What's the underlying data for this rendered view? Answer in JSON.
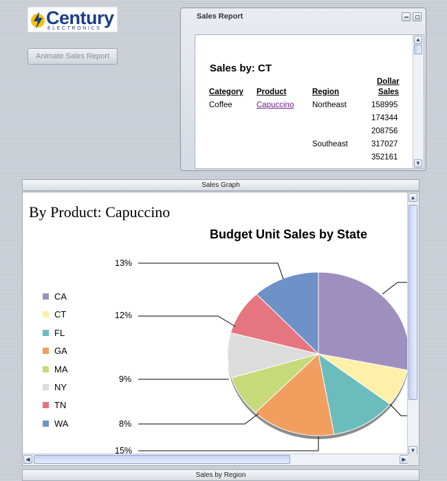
{
  "logo": {
    "brand": "Century",
    "sub": "ELECTRONICS"
  },
  "animate_button": "Animate Sales Report",
  "report_window": {
    "title": "Sales Report",
    "heading": "Sales by: CT",
    "headers": {
      "category": "Category",
      "product": "Product",
      "region": "Region",
      "dollar": "Dollar",
      "sales": "Sales"
    },
    "category": "Coffee",
    "product": "Capuccino",
    "regions": [
      "Northeast",
      "Southeast"
    ],
    "values": [
      "158995",
      "174344",
      "208756",
      "317027",
      "352161"
    ]
  },
  "panels": {
    "graph_title": "Sales Graph",
    "region_title": "Sales by Region"
  },
  "graph": {
    "by_product": "By Product: Capuccino"
  },
  "chart_data": {
    "type": "pie",
    "title": "Budget Unit Sales by State",
    "legend_position": "left",
    "categories": [
      "CA",
      "CT",
      "FL",
      "GA",
      "MA",
      "NY",
      "TN",
      "WA"
    ],
    "colors": [
      "#9f8fbf",
      "#fef0a8",
      "#6bbcbc",
      "#f29e5f",
      "#c6da7a",
      "#dcdcdc",
      "#e5757f",
      "#6e91c8"
    ],
    "values": [
      null,
      null,
      null,
      15,
      8,
      9,
      12,
      13
    ],
    "visible_labels": [
      "13%",
      "12%",
      "9%",
      "8%",
      "15%"
    ]
  }
}
